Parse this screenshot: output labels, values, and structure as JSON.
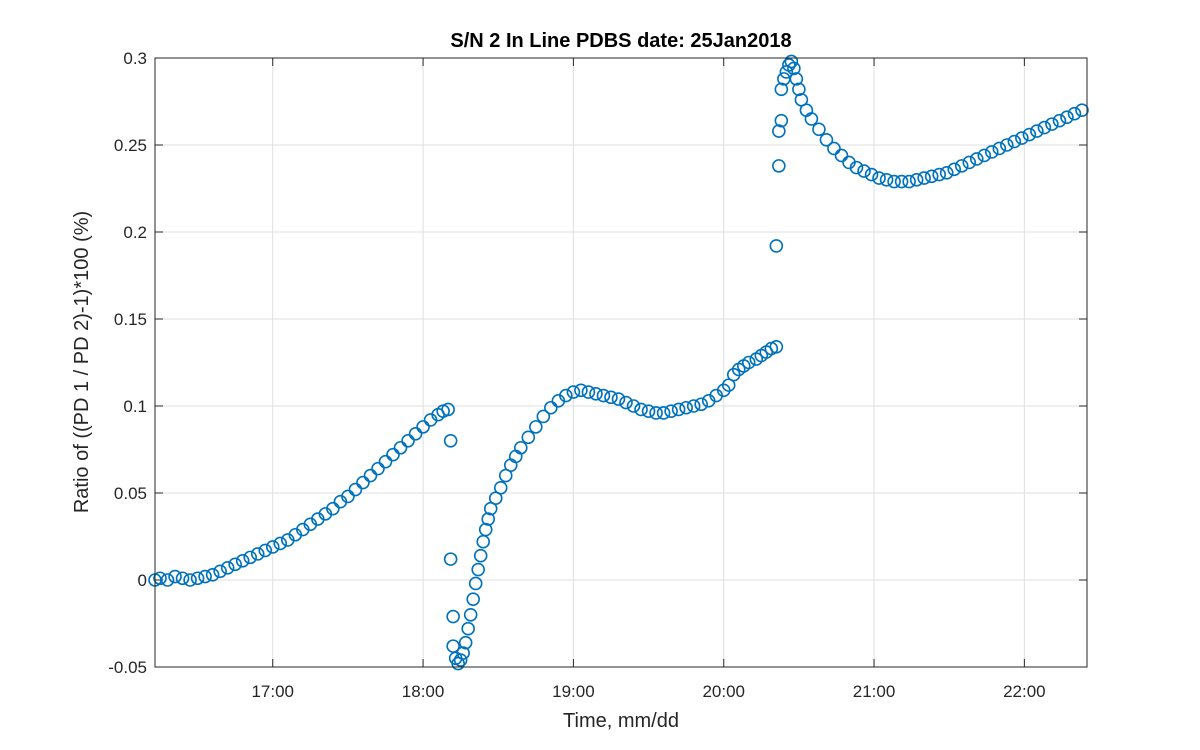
{
  "chart_data": {
    "type": "scatter",
    "title": "S/N 2 In Line PDBS date: 25Jan2018",
    "xlabel": "Time, mm/dd",
    "ylabel": "Ratio of ((PD 1 / PD 2)-1)*100 (%)",
    "xlim": [
      "16:13",
      "22:25"
    ],
    "ylim": [
      -0.05,
      0.3
    ],
    "x_ticks": [
      "17:00",
      "18:00",
      "19:00",
      "20:00",
      "21:00",
      "22:00"
    ],
    "y_ticks": [
      "-0.05",
      "0",
      "0.05",
      "0.1",
      "0.15",
      "0.2",
      "0.25",
      "0.3"
    ],
    "grid": true,
    "marker": "open-circle",
    "color": "#0072BD",
    "series": [
      {
        "points": [
          [
            "16:13",
            0.0
          ],
          [
            "16:15",
            0.001
          ],
          [
            "16:18",
            0.0
          ],
          [
            "16:21",
            0.002
          ],
          [
            "16:24",
            0.001
          ],
          [
            "16:27",
            0.0
          ],
          [
            "16:30",
            0.001
          ],
          [
            "16:33",
            0.002
          ],
          [
            "16:36",
            0.003
          ],
          [
            "16:39",
            0.005
          ],
          [
            "16:42",
            0.007
          ],
          [
            "16:45",
            0.009
          ],
          [
            "16:48",
            0.011
          ],
          [
            "16:51",
            0.013
          ],
          [
            "16:54",
            0.015
          ],
          [
            "16:57",
            0.017
          ],
          [
            "17:00",
            0.019
          ],
          [
            "17:03",
            0.021
          ],
          [
            "17:06",
            0.023
          ],
          [
            "17:09",
            0.026
          ],
          [
            "17:12",
            0.029
          ],
          [
            "17:15",
            0.032
          ],
          [
            "17:18",
            0.035
          ],
          [
            "17:21",
            0.038
          ],
          [
            "17:24",
            0.041
          ],
          [
            "17:27",
            0.045
          ],
          [
            "17:30",
            0.048
          ],
          [
            "17:33",
            0.052
          ],
          [
            "17:36",
            0.056
          ],
          [
            "17:39",
            0.06
          ],
          [
            "17:42",
            0.064
          ],
          [
            "17:45",
            0.068
          ],
          [
            "17:48",
            0.072
          ],
          [
            "17:51",
            0.076
          ],
          [
            "17:54",
            0.08
          ],
          [
            "17:57",
            0.084
          ],
          [
            "18:00",
            0.088
          ],
          [
            "18:03",
            0.092
          ],
          [
            "18:06",
            0.095
          ],
          [
            "18:08",
            0.097
          ],
          [
            "18:10",
            0.098
          ],
          [
            "18:11",
            0.08
          ],
          [
            "18:11",
            0.012
          ],
          [
            "18:12",
            -0.021
          ],
          [
            "18:12",
            -0.038
          ],
          [
            "18:13",
            -0.045
          ],
          [
            "18:14",
            -0.048
          ],
          [
            "18:15",
            -0.046
          ],
          [
            "18:16",
            -0.042
          ],
          [
            "18:17",
            -0.036
          ],
          [
            "18:18",
            -0.028
          ],
          [
            "18:19",
            -0.02
          ],
          [
            "18:20",
            -0.011
          ],
          [
            "18:21",
            -0.002
          ],
          [
            "18:22",
            0.006
          ],
          [
            "18:23",
            0.014
          ],
          [
            "18:24",
            0.022
          ],
          [
            "18:25",
            0.029
          ],
          [
            "18:26",
            0.035
          ],
          [
            "18:27",
            0.041
          ],
          [
            "18:29",
            0.047
          ],
          [
            "18:31",
            0.053
          ],
          [
            "18:33",
            0.06
          ],
          [
            "18:35",
            0.066
          ],
          [
            "18:37",
            0.071
          ],
          [
            "18:39",
            0.076
          ],
          [
            "18:42",
            0.082
          ],
          [
            "18:45",
            0.088
          ],
          [
            "18:48",
            0.094
          ],
          [
            "18:51",
            0.099
          ],
          [
            "18:54",
            0.103
          ],
          [
            "18:57",
            0.106
          ],
          [
            "19:00",
            0.108
          ],
          [
            "19:03",
            0.109
          ],
          [
            "19:06",
            0.108
          ],
          [
            "19:09",
            0.107
          ],
          [
            "19:12",
            0.106
          ],
          [
            "19:15",
            0.105
          ],
          [
            "19:18",
            0.104
          ],
          [
            "19:21",
            0.102
          ],
          [
            "19:24",
            0.1
          ],
          [
            "19:27",
            0.098
          ],
          [
            "19:30",
            0.097
          ],
          [
            "19:33",
            0.096
          ],
          [
            "19:36",
            0.096
          ],
          [
            "19:39",
            0.097
          ],
          [
            "19:42",
            0.098
          ],
          [
            "19:45",
            0.099
          ],
          [
            "19:48",
            0.1
          ],
          [
            "19:51",
            0.101
          ],
          [
            "19:54",
            0.103
          ],
          [
            "19:57",
            0.106
          ],
          [
            "20:00",
            0.109
          ],
          [
            "20:02",
            0.112
          ],
          [
            "20:04",
            0.118
          ],
          [
            "20:06",
            0.121
          ],
          [
            "20:08",
            0.123
          ],
          [
            "20:10",
            0.125
          ],
          [
            "20:13",
            0.127
          ],
          [
            "20:15",
            0.129
          ],
          [
            "20:17",
            0.131
          ],
          [
            "20:19",
            0.133
          ],
          [
            "20:21",
            0.134
          ],
          [
            "20:21",
            0.192
          ],
          [
            "20:22",
            0.238
          ],
          [
            "20:22",
            0.258
          ],
          [
            "20:23",
            0.264
          ],
          [
            "20:23",
            0.282
          ],
          [
            "20:24",
            0.288
          ],
          [
            "20:25",
            0.292
          ],
          [
            "20:26",
            0.296
          ],
          [
            "20:27",
            0.298
          ],
          [
            "20:28",
            0.294
          ],
          [
            "20:29",
            0.288
          ],
          [
            "20:30",
            0.282
          ],
          [
            "20:31",
            0.276
          ],
          [
            "20:33",
            0.27
          ],
          [
            "20:35",
            0.265
          ],
          [
            "20:38",
            0.259
          ],
          [
            "20:41",
            0.253
          ],
          [
            "20:44",
            0.248
          ],
          [
            "20:47",
            0.244
          ],
          [
            "20:50",
            0.24
          ],
          [
            "20:53",
            0.237
          ],
          [
            "20:56",
            0.235
          ],
          [
            "20:59",
            0.233
          ],
          [
            "21:02",
            0.231
          ],
          [
            "21:05",
            0.23
          ],
          [
            "21:08",
            0.229
          ],
          [
            "21:11",
            0.229
          ],
          [
            "21:14",
            0.229
          ],
          [
            "21:17",
            0.23
          ],
          [
            "21:20",
            0.231
          ],
          [
            "21:23",
            0.232
          ],
          [
            "21:26",
            0.233
          ],
          [
            "21:29",
            0.234
          ],
          [
            "21:32",
            0.236
          ],
          [
            "21:35",
            0.238
          ],
          [
            "21:38",
            0.24
          ],
          [
            "21:41",
            0.242
          ],
          [
            "21:44",
            0.244
          ],
          [
            "21:47",
            0.246
          ],
          [
            "21:50",
            0.248
          ],
          [
            "21:53",
            0.25
          ],
          [
            "21:56",
            0.252
          ],
          [
            "21:59",
            0.254
          ],
          [
            "22:02",
            0.256
          ],
          [
            "22:05",
            0.258
          ],
          [
            "22:08",
            0.26
          ],
          [
            "22:11",
            0.262
          ],
          [
            "22:14",
            0.264
          ],
          [
            "22:17",
            0.266
          ],
          [
            "22:20",
            0.268
          ],
          [
            "22:23",
            0.27
          ]
        ]
      }
    ]
  }
}
